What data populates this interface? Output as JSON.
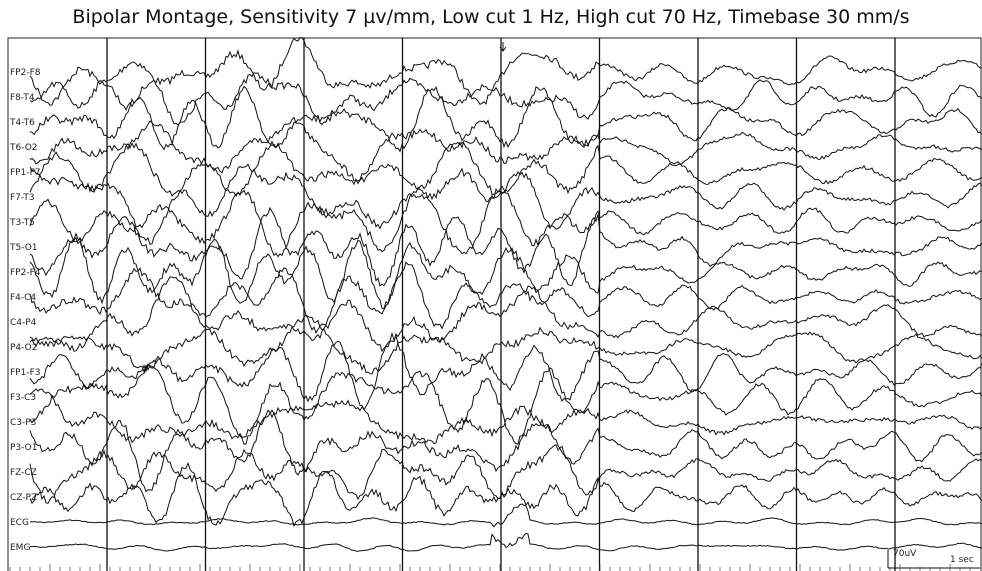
{
  "title": "Bipolar Montage, Sensitivity 7 µv/mm, Low cut 1 Hz, High cut 70 Hz, Timebase 30 mm/s",
  "channels": [
    "FP2-F8",
    "F8-T4",
    "T4-T6",
    "T6-O2",
    "FP1-F7",
    "F7-T3",
    "T3-T5",
    "T5-O1",
    "FP2-F4",
    "F4-C4",
    "C4-P4",
    "P4-O2",
    "FP1-F3",
    "F3-C3",
    "C3-P3",
    "P3-O1",
    "FZ-CZ",
    "CZ-PZ",
    "ECG",
    "EMG"
  ],
  "scale": {
    "amplitude": "70uV",
    "time": "1 sec"
  }
}
